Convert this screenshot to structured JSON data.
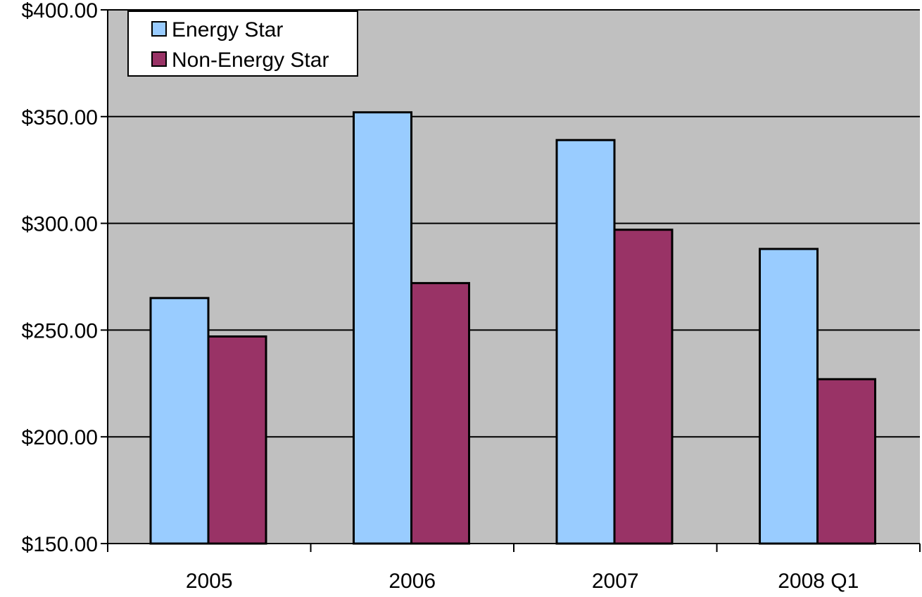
{
  "chart_data": {
    "type": "bar",
    "title": "",
    "xlabel": "",
    "ylabel": "",
    "categories": [
      "2005",
      "2006",
      "2007",
      "2008 Q1"
    ],
    "series": [
      {
        "name": "Energy Star",
        "color": "#99ccff",
        "values": [
          265,
          352,
          339,
          288
        ]
      },
      {
        "name": "Non-Energy Star",
        "color": "#993366",
        "values": [
          247,
          272,
          297,
          227
        ]
      }
    ],
    "ylim": [
      150,
      400
    ],
    "yticks": [
      150,
      200,
      250,
      300,
      350,
      400
    ],
    "ytick_labels": [
      "$150.00",
      "$200.00",
      "$250.00",
      "$300.00",
      "$350.00",
      "$400.00"
    ],
    "grid": true,
    "plot_background": "#c0c0c0",
    "legend_position": "top-left"
  }
}
